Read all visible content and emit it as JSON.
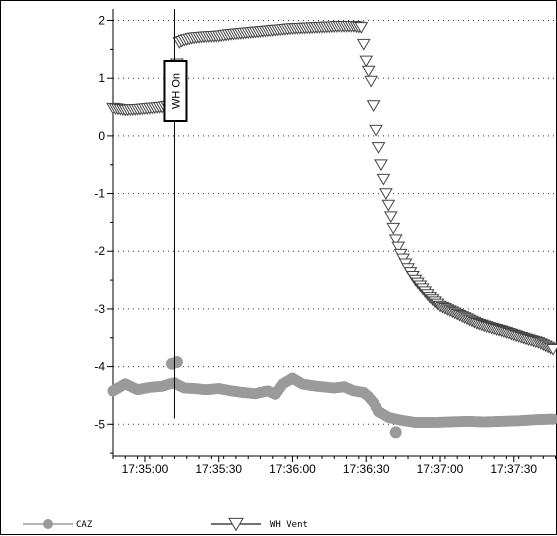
{
  "chart_data": {
    "type": "scatter",
    "title": "",
    "xlabel": "",
    "ylabel": "",
    "x_tick_labels": [
      "17:35:00",
      "17:35:30",
      "17:36:00",
      "17:36:30",
      "17:37:00",
      "17:37:30"
    ],
    "y_tick_labels": [
      "2",
      "1",
      "0",
      "-1",
      "-2",
      "-3",
      "-4",
      "-5"
    ],
    "xlim": [
      "17:34:47",
      "17:37:48"
    ],
    "ylim": [
      -5.55,
      2.2
    ],
    "grid": "horizontal dotted",
    "legend_position": "bottom",
    "annotation": {
      "label": "WH On",
      "x": "17:35:12"
    },
    "series": [
      {
        "name": "CAZ",
        "marker": "circle",
        "color": "#9a9a9a",
        "points": [
          [
            "17:34:47",
            -4.42
          ],
          [
            "17:34:52",
            -4.3
          ],
          [
            "17:34:57",
            -4.4
          ],
          [
            "17:35:02",
            -4.36
          ],
          [
            "17:35:07",
            -4.34
          ],
          [
            "17:35:10",
            -4.3
          ],
          [
            "17:35:12",
            -4.28
          ],
          [
            "17:35:14",
            -4.33
          ],
          [
            "17:35:16",
            -4.37
          ],
          [
            "17:35:20",
            -4.38
          ],
          [
            "17:35:25",
            -4.4
          ],
          [
            "17:35:30",
            -4.38
          ],
          [
            "17:35:35",
            -4.42
          ],
          [
            "17:35:40",
            -4.45
          ],
          [
            "17:35:45",
            -4.47
          ],
          [
            "17:35:50",
            -4.42
          ],
          [
            "17:35:53",
            -4.48
          ],
          [
            "17:35:56",
            -4.3
          ],
          [
            "17:36:00",
            -4.2
          ],
          [
            "17:36:04",
            -4.3
          ],
          [
            "17:36:08",
            -4.33
          ],
          [
            "17:36:12",
            -4.35
          ],
          [
            "17:36:17",
            -4.37
          ],
          [
            "17:36:21",
            -4.35
          ],
          [
            "17:36:25",
            -4.42
          ],
          [
            "17:36:29",
            -4.45
          ],
          [
            "17:36:31",
            -4.52
          ],
          [
            "17:36:33",
            -4.62
          ],
          [
            "17:36:35",
            -4.78
          ],
          [
            "17:36:39",
            -4.88
          ],
          [
            "17:36:43",
            -4.92
          ],
          [
            "17:36:47",
            -4.95
          ],
          [
            "17:36:50",
            -4.97
          ],
          [
            "17:36:57",
            -4.97
          ],
          [
            "17:37:04",
            -4.96
          ],
          [
            "17:37:11",
            -4.95
          ],
          [
            "17:37:18",
            -4.96
          ],
          [
            "17:37:25",
            -4.95
          ],
          [
            "17:37:32",
            -4.94
          ],
          [
            "17:37:39",
            -4.92
          ],
          [
            "17:37:46",
            -4.91
          ]
        ],
        "outliers": [
          [
            "17:35:11",
            -3.95
          ],
          [
            "17:35:13",
            -3.92
          ],
          [
            "17:36:42",
            -5.14
          ]
        ]
      },
      {
        "name": "WH Vent",
        "marker": "triangle-down",
        "color": "#444444",
        "points": [
          [
            "17:34:47",
            0.48
          ],
          [
            "17:34:52",
            0.45
          ],
          [
            "17:34:57",
            0.46
          ],
          [
            "17:35:02",
            0.48
          ],
          [
            "17:35:07",
            0.5
          ],
          [
            "17:35:10",
            0.52
          ],
          [
            "17:35:12",
            0.55
          ],
          [
            "17:35:13",
            1.25
          ],
          [
            "17:35:14",
            1.62
          ],
          [
            "17:35:16",
            1.66
          ],
          [
            "17:35:20",
            1.7
          ],
          [
            "17:35:25",
            1.72
          ],
          [
            "17:35:30",
            1.73
          ],
          [
            "17:35:35",
            1.76
          ],
          [
            "17:35:40",
            1.78
          ],
          [
            "17:35:45",
            1.8
          ],
          [
            "17:35:50",
            1.82
          ],
          [
            "17:35:55",
            1.84
          ],
          [
            "17:36:00",
            1.86
          ],
          [
            "17:36:05",
            1.87
          ],
          [
            "17:36:10",
            1.88
          ],
          [
            "17:36:15",
            1.89
          ],
          [
            "17:36:20",
            1.9
          ],
          [
            "17:36:25",
            1.9
          ],
          [
            "17:36:28",
            1.88
          ],
          [
            "17:36:30",
            1.3
          ],
          [
            "17:36:32",
            0.95
          ],
          [
            "17:36:34",
            0.1
          ],
          [
            "17:36:36",
            -0.5
          ],
          [
            "17:36:38",
            -1.0
          ],
          [
            "17:36:40",
            -1.4
          ],
          [
            "17:36:42",
            -1.8
          ],
          [
            "17:36:44",
            -2.05
          ],
          [
            "17:36:47",
            -2.3
          ],
          [
            "17:36:50",
            -2.5
          ],
          [
            "17:36:53",
            -2.65
          ],
          [
            "17:36:56",
            -2.8
          ],
          [
            "17:37:00",
            -2.95
          ],
          [
            "17:37:05",
            -3.05
          ],
          [
            "17:37:10",
            -3.15
          ],
          [
            "17:37:15",
            -3.25
          ],
          [
            "17:37:20",
            -3.32
          ],
          [
            "17:37:25",
            -3.38
          ],
          [
            "17:37:30",
            -3.45
          ],
          [
            "17:37:35",
            -3.52
          ],
          [
            "17:37:40",
            -3.58
          ],
          [
            "17:37:46",
            -3.7
          ]
        ]
      }
    ]
  }
}
